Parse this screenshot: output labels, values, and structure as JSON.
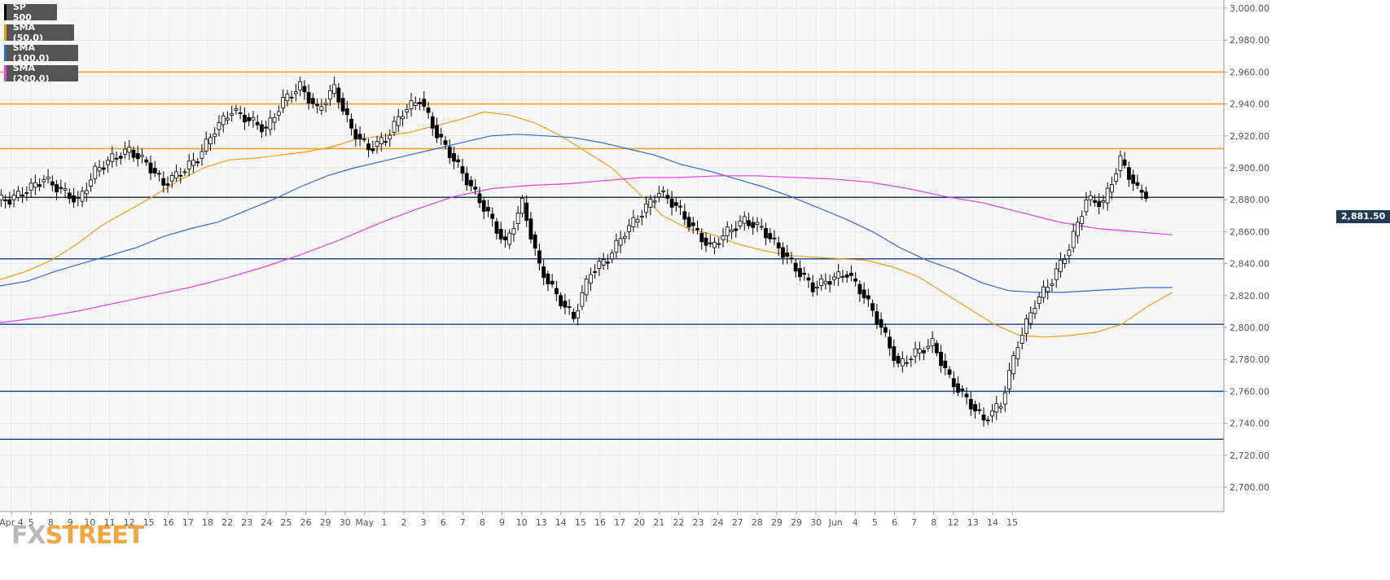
{
  "legend": [
    {
      "label": "SP 500",
      "color": "#000000"
    },
    {
      "label": "SMA (50,0)",
      "color": "#f39c12"
    },
    {
      "label": "SMA (100,0)",
      "color": "#2e6bd6"
    },
    {
      "label": "SMA (200,0)",
      "color": "#e83ee8"
    }
  ],
  "logo": {
    "fx": "FX",
    "street": "STREET"
  },
  "price_tag": "2,881.50",
  "chart_data": {
    "type": "candlestick",
    "title": "SP 500",
    "ylim": [
      2690,
      3002
    ],
    "y_ticks": [
      "3,000.00",
      "2,980.00",
      "2,960.00",
      "2,940.00",
      "2,920.00",
      "2,900.00",
      "2,880.00",
      "2,860.00",
      "2,840.00",
      "2,820.00",
      "2,800.00",
      "2,780.00",
      "2,760.00",
      "2,740.00",
      "2,720.00",
      "2,700.00"
    ],
    "x_ticks": [
      "Apr 4",
      "5",
      "8",
      "9",
      "10",
      "11",
      "12",
      "15",
      "16",
      "17",
      "18",
      "22",
      "23",
      "24",
      "25",
      "26",
      "29",
      "30",
      "May",
      "1",
      "2",
      "3",
      "6",
      "7",
      "8",
      "9",
      "10",
      "13",
      "14",
      "15",
      "16",
      "17",
      "20",
      "21",
      "22",
      "23",
      "24",
      "27",
      "28",
      "29",
      "29",
      "30",
      "Jun",
      "4",
      "5",
      "6",
      "7",
      "8",
      "12",
      "13",
      "14",
      "15"
    ],
    "resistance_levels": [
      2960,
      2940,
      2912
    ],
    "support_levels": [
      2843,
      2802,
      2760,
      2730
    ],
    "current_price": 2881.5,
    "grid": true,
    "legend_position": "top-left",
    "series": [
      {
        "name": "SMA (50,0)",
        "values": [
          2830,
          2835,
          2842,
          2852,
          2864,
          2873,
          2882,
          2892,
          2900,
          2905,
          2906,
          2908,
          2910,
          2913,
          2918,
          2920,
          2922,
          2926,
          2930,
          2935,
          2933,
          2928,
          2920,
          2910,
          2900,
          2885,
          2870,
          2862,
          2858,
          2852,
          2848,
          2845,
          2844,
          2843,
          2842,
          2838,
          2832,
          2822,
          2812,
          2802,
          2795,
          2794,
          2795,
          2797,
          2802,
          2813,
          2822
        ]
      },
      {
        "name": "SMA (100,0)",
        "values": [
          2826,
          2829,
          2835,
          2840,
          2845,
          2850,
          2857,
          2862,
          2866,
          2873,
          2880,
          2888,
          2895,
          2900,
          2904,
          2908,
          2912,
          2916,
          2920,
          2921,
          2920,
          2919,
          2916,
          2912,
          2908,
          2902,
          2898,
          2893,
          2888,
          2882,
          2875,
          2868,
          2860,
          2850,
          2842,
          2836,
          2828,
          2823,
          2822,
          2822,
          2823,
          2824,
          2825,
          2825
        ]
      },
      {
        "name": "SMA (200,0)",
        "values": [
          2803,
          2806,
          2810,
          2815,
          2820,
          2825,
          2831,
          2838,
          2846,
          2855,
          2865,
          2874,
          2882,
          2887,
          2889,
          2890,
          2892,
          2894,
          2894,
          2895,
          2895,
          2894,
          2893,
          2891,
          2887,
          2882,
          2878,
          2872,
          2866,
          2862,
          2860,
          2858
        ]
      },
      {
        "name": "SP 500",
        "values": [
          2880,
          2886,
          2893,
          2886,
          2879,
          2898,
          2906,
          2911,
          2903,
          2890,
          2897,
          2906,
          2924,
          2936,
          2930,
          2924,
          2942,
          2951,
          2936,
          2950,
          2924,
          2912,
          2918,
          2935,
          2943,
          2921,
          2905,
          2888,
          2871,
          2852,
          2878,
          2838,
          2820,
          2806,
          2835,
          2843,
          2860,
          2872,
          2885,
          2876,
          2862,
          2850,
          2860,
          2867,
          2862,
          2850,
          2837,
          2825,
          2830,
          2834,
          2820,
          2800,
          2776,
          2784,
          2790,
          2768,
          2755,
          2742,
          2752,
          2790,
          2815,
          2830,
          2850,
          2880,
          2878,
          2905,
          2886,
          2881.5
        ]
      }
    ]
  }
}
